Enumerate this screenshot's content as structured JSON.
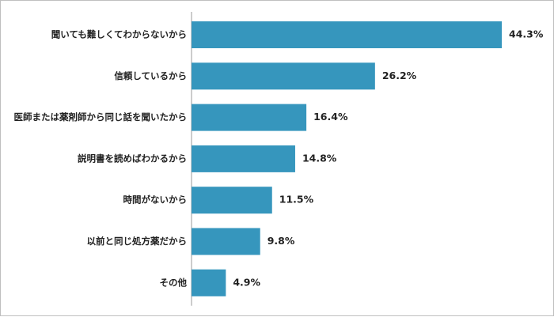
{
  "chart_data": {
    "type": "bar",
    "orientation": "horizontal",
    "title": "",
    "xlabel": "",
    "ylabel": "",
    "categories": [
      "聞いても難しくてわからないから",
      "信頼しているから",
      "医師または薬剤師から同じ話を聞いたから",
      "説明書を読めばわかるから",
      "時間がないから",
      "以前と同じ処方薬だから",
      "その他"
    ],
    "values": [
      44.3,
      26.2,
      16.4,
      14.8,
      11.5,
      9.8,
      4.9
    ],
    "value_labels": [
      "44.3%",
      "26.2%",
      "16.4%",
      "14.8%",
      "11.5%",
      "9.8%",
      "4.9%"
    ],
    "unit": "%",
    "xlim": [
      0,
      50
    ],
    "grid": false,
    "legend": "none",
    "colors": {
      "bar": "#3696BD",
      "axis": "#9a9a9a",
      "text": "#222222"
    }
  }
}
